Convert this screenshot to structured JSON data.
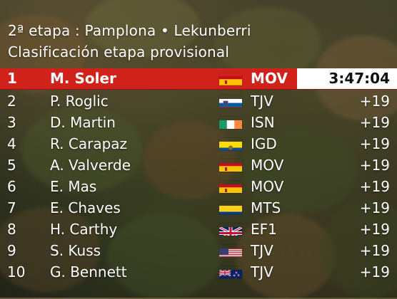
{
  "header": {
    "line1": "2ª etapa : Pamplona • Lekunberri",
    "line2": "Clasificación etapa provisional"
  },
  "colors": {
    "leader_bar": "#d0221b",
    "time_box": "#ffffff"
  },
  "results": [
    {
      "pos": "1",
      "name": "M. Soler",
      "flag": "spain-flag",
      "team": "MOV",
      "time": "3:47:04"
    },
    {
      "pos": "2",
      "name": "P. Roglic",
      "flag": "slovenia-flag",
      "team": "TJV",
      "time": "+19"
    },
    {
      "pos": "3",
      "name": "D. Martin",
      "flag": "ireland-flag",
      "team": "ISN",
      "time": "+19"
    },
    {
      "pos": "4",
      "name": "R. Carapaz",
      "flag": "ecuador-flag",
      "team": "IGD",
      "time": "+19"
    },
    {
      "pos": "5",
      "name": "A. Valverde",
      "flag": "spain-flag",
      "team": "MOV",
      "time": "+19"
    },
    {
      "pos": "6",
      "name": "E. Mas",
      "flag": "spain-flag",
      "team": "MOV",
      "time": "+19"
    },
    {
      "pos": "7",
      "name": "E. Chaves",
      "flag": "colombia-flag",
      "team": "MTS",
      "time": "+19"
    },
    {
      "pos": "8",
      "name": "H. Carthy",
      "flag": "uk-flag",
      "team": "EF1",
      "time": "+19"
    },
    {
      "pos": "9",
      "name": "S. Kuss",
      "flag": "usa-flag",
      "team": "TJV",
      "time": "+19"
    },
    {
      "pos": "10",
      "name": "G. Bennett",
      "flag": "new-zealand-flag",
      "team": "TJV",
      "time": "+19"
    }
  ]
}
